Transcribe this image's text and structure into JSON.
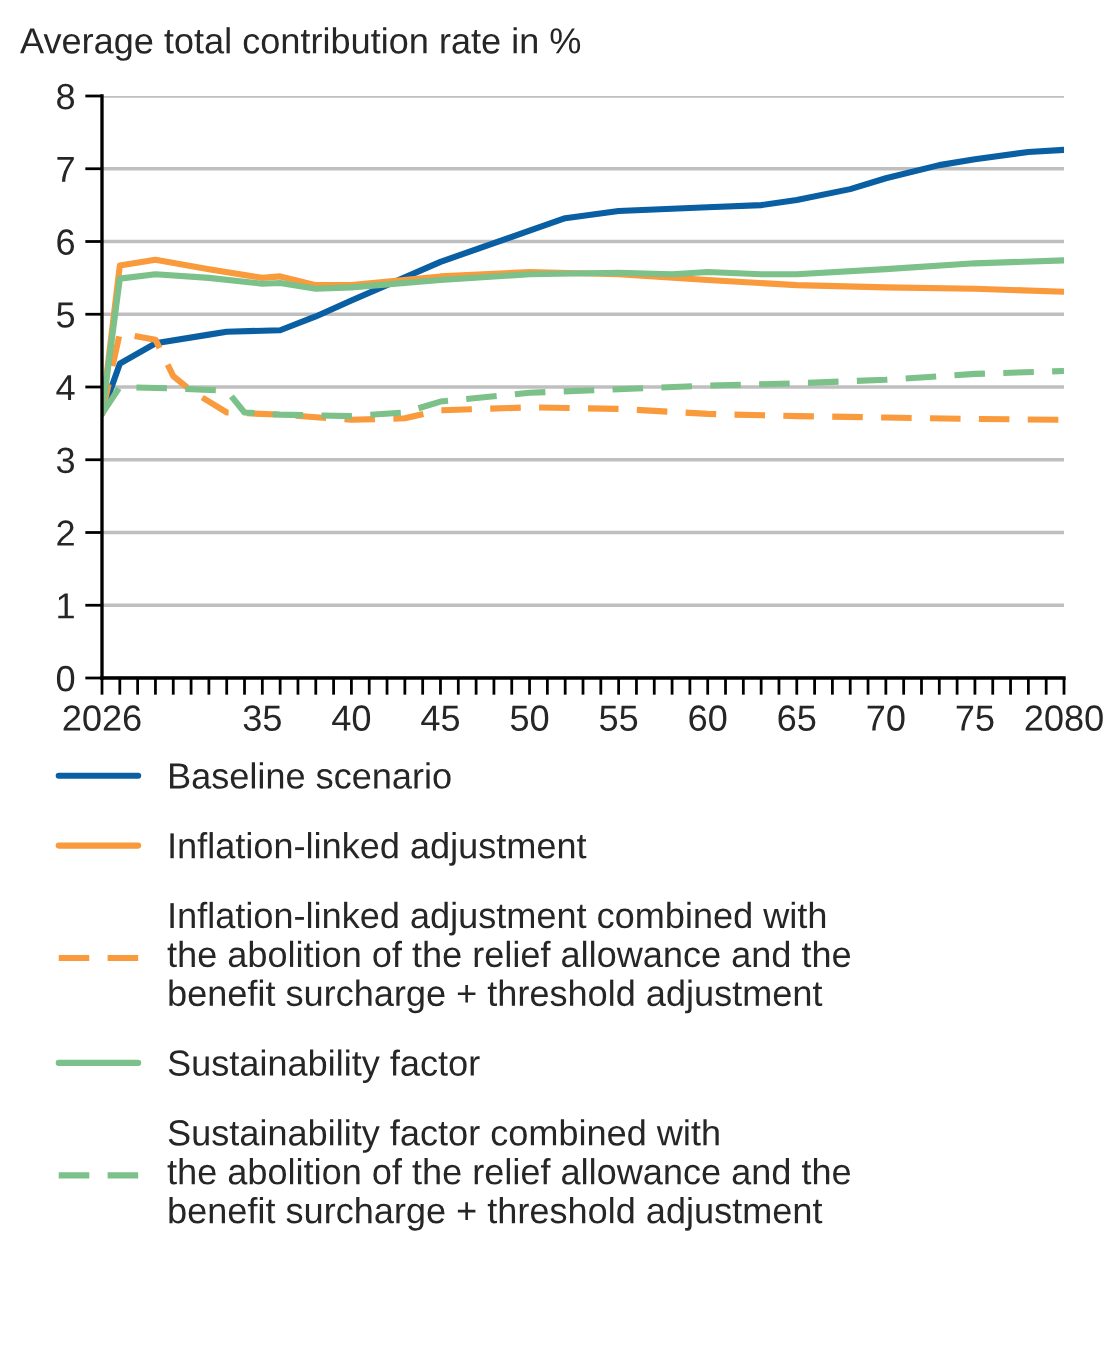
{
  "chart_data": {
    "type": "line",
    "title": "Average total contribution rate in %",
    "series": [
      {
        "name": "Baseline scenario",
        "color": "#0a5fa3",
        "line_style": "solid",
        "x": [
          2026,
          2027,
          2029,
          2032,
          2033,
          2036,
          2038,
          2040,
          2045,
          2050,
          2052,
          2055,
          2058,
          2060,
          2063,
          2065,
          2068,
          2070,
          2073,
          2075,
          2078,
          2080
        ],
        "values": [
          3.63,
          4.32,
          4.6,
          4.72,
          4.76,
          4.78,
          4.97,
          5.19,
          5.72,
          6.15,
          6.32,
          6.42,
          6.45,
          6.47,
          6.5,
          6.57,
          6.72,
          6.87,
          7.05,
          7.13,
          7.23,
          7.26
        ]
      },
      {
        "name": "Inflation-linked adjustment",
        "color": "#f99a3c",
        "line_style": "solid",
        "x": [
          2026,
          2027,
          2029,
          2032,
          2035,
          2036,
          2038,
          2040,
          2045,
          2050,
          2055,
          2060,
          2065,
          2070,
          2075,
          2080
        ],
        "values": [
          3.63,
          5.67,
          5.75,
          5.62,
          5.5,
          5.52,
          5.4,
          5.4,
          5.52,
          5.58,
          5.55,
          5.47,
          5.4,
          5.37,
          5.35,
          5.31
        ]
      },
      {
        "name": "Inflation-linked adjustment combined with\nthe abolition of the relief allowance and the\nbenefit surcharge + threshold adjustment",
        "color": "#f99a3c",
        "line_style": "dashed",
        "x": [
          2026,
          2027,
          2029,
          2030,
          2031,
          2033,
          2036,
          2040,
          2043,
          2045,
          2050,
          2055,
          2060,
          2065,
          2070,
          2075,
          2080
        ],
        "values": [
          3.63,
          4.74,
          4.65,
          4.15,
          3.95,
          3.65,
          3.62,
          3.55,
          3.57,
          3.68,
          3.72,
          3.7,
          3.63,
          3.6,
          3.58,
          3.56,
          3.55
        ]
      },
      {
        "name": "Sustainability factor",
        "color": "#7cc08a",
        "line_style": "solid",
        "x": [
          2026,
          2027,
          2029,
          2032,
          2035,
          2036,
          2038,
          2040,
          2045,
          2050,
          2055,
          2058,
          2060,
          2063,
          2065,
          2070,
          2075,
          2080
        ],
        "values": [
          3.63,
          5.49,
          5.55,
          5.5,
          5.42,
          5.43,
          5.35,
          5.37,
          5.47,
          5.55,
          5.57,
          5.55,
          5.58,
          5.55,
          5.55,
          5.62,
          5.7,
          5.74
        ]
      },
      {
        "name": "Sustainability factor combined with\nthe abolition of the relief allowance and the\nbenefit surcharge + threshold adjustment",
        "color": "#7cc08a",
        "line_style": "dashed",
        "x": [
          2026,
          2027,
          2030,
          2033,
          2034,
          2036,
          2040,
          2043,
          2045,
          2050,
          2055,
          2060,
          2065,
          2070,
          2075,
          2080
        ],
        "values": [
          3.63,
          4.0,
          3.98,
          3.95,
          3.65,
          3.62,
          3.6,
          3.65,
          3.8,
          3.92,
          3.97,
          4.02,
          4.05,
          4.1,
          4.18,
          4.22
        ]
      }
    ],
    "xlim": [
      2026,
      2080
    ],
    "xticks": [
      2026,
      {
        "value": 2027,
        "label": null
      },
      {
        "value": 2028,
        "label": null
      },
      {
        "value": 2029,
        "label": null
      },
      {
        "value": 2030,
        "label": null
      },
      {
        "value": 2031,
        "label": null
      },
      {
        "value": 2032,
        "label": null
      },
      {
        "value": 2033,
        "label": null
      },
      {
        "value": 2034,
        "label": null
      },
      {
        "value": 2035,
        "label": "35"
      },
      {
        "value": 2036,
        "label": null
      },
      {
        "value": 2037,
        "label": null
      },
      {
        "value": 2038,
        "label": null
      },
      {
        "value": 2039,
        "label": null
      },
      {
        "value": 2040,
        "label": "40"
      },
      {
        "value": 2041,
        "label": null
      },
      {
        "value": 2042,
        "label": null
      },
      {
        "value": 2043,
        "label": null
      },
      {
        "value": 2044,
        "label": null
      },
      {
        "value": 2045,
        "label": "45"
      },
      {
        "value": 2046,
        "label": null
      },
      {
        "value": 2047,
        "label": null
      },
      {
        "value": 2048,
        "label": null
      },
      {
        "value": 2049,
        "label": null
      },
      {
        "value": 2050,
        "label": "50"
      },
      {
        "value": 2051,
        "label": null
      },
      {
        "value": 2052,
        "label": null
      },
      {
        "value": 2053,
        "label": null
      },
      {
        "value": 2054,
        "label": null
      },
      {
        "value": 2055,
        "label": "55"
      },
      {
        "value": 2056,
        "label": null
      },
      {
        "value": 2057,
        "label": null
      },
      {
        "value": 2058,
        "label": null
      },
      {
        "value": 2059,
        "label": null
      },
      {
        "value": 2060,
        "label": "60"
      },
      {
        "value": 2061,
        "label": null
      },
      {
        "value": 2062,
        "label": null
      },
      {
        "value": 2063,
        "label": null
      },
      {
        "value": 2064,
        "label": null
      },
      {
        "value": 2065,
        "label": "65"
      },
      {
        "value": 2066,
        "label": null
      },
      {
        "value": 2067,
        "label": null
      },
      {
        "value": 2068,
        "label": null
      },
      {
        "value": 2069,
        "label": null
      },
      {
        "value": 2070,
        "label": "70"
      },
      {
        "value": 2071,
        "label": null
      },
      {
        "value": 2072,
        "label": null
      },
      {
        "value": 2073,
        "label": null
      },
      {
        "value": 2074,
        "label": null
      },
      {
        "value": 2075,
        "label": "75"
      },
      {
        "value": 2076,
        "label": null
      },
      {
        "value": 2077,
        "label": null
      },
      {
        "value": 2078,
        "label": null
      },
      {
        "value": 2079,
        "label": null
      },
      2080
    ],
    "ylim": [
      0,
      8
    ],
    "yticks": [
      0,
      1,
      2,
      3,
      4,
      5,
      6,
      7,
      8
    ],
    "grid": "y",
    "legend": "bottom",
    "marker": "none"
  }
}
